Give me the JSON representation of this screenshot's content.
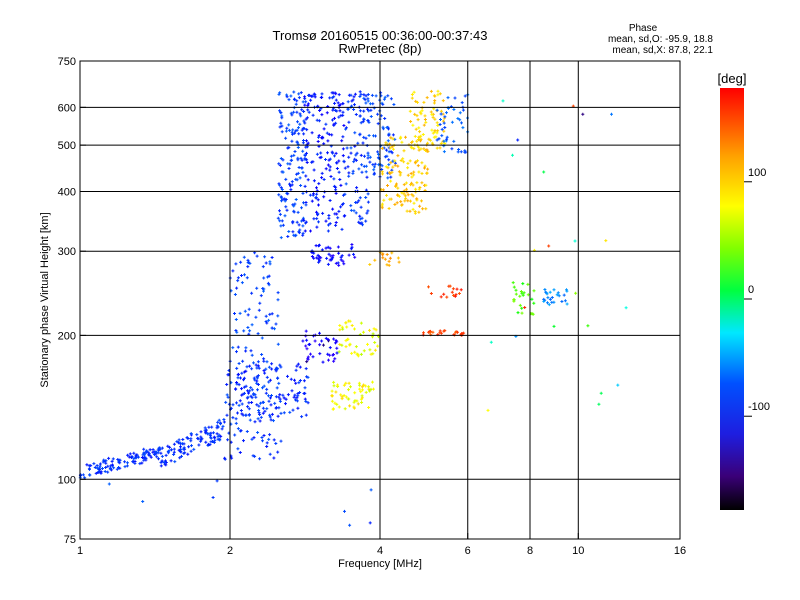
{
  "chart_data": {
    "type": "scatter",
    "title": "Tromsø 20160515 00:36:00-00:37:43",
    "subtitle": "RwPretec (8p)",
    "xlabel": "Frequency [MHz]",
    "ylabel": "Stationary phase Virtual Height [km]",
    "x_scale": "log",
    "y_scale": "log",
    "xlim": [
      1,
      16
    ],
    "ylim": [
      75,
      750
    ],
    "x_ticks": [
      "1",
      "2",
      "4",
      "6",
      "8",
      "10",
      "16"
    ],
    "x_tick_values": [
      1,
      2,
      4,
      6,
      8,
      10,
      16
    ],
    "y_ticks": [
      "75",
      "100",
      "200",
      "300",
      "400",
      "500",
      "600",
      "750"
    ],
    "y_tick_values": [
      75,
      100,
      200,
      300,
      400,
      500,
      600,
      750
    ],
    "grid": true,
    "stats": {
      "heading": "Phase",
      "line_o": "mean, sd,O: -95.9, 18.8",
      "line_x": "mean, sd,X:  87.8, 22.1"
    },
    "colorbar": {
      "unit": "[deg]",
      "range": [
        -180,
        180
      ],
      "tick_labels": [
        "100",
        "0",
        "-100"
      ],
      "tick_values": [
        100,
        0,
        -100
      ]
    },
    "clusters": [
      {
        "f": [
          1.0,
          1.45
        ],
        "h": [
          100,
          118
        ],
        "phase": -108,
        "n": 120,
        "shape": "low"
      },
      {
        "f": [
          1.45,
          1.95
        ],
        "h": [
          105,
          135
        ],
        "phase": -108,
        "n": 110,
        "shape": "low"
      },
      {
        "f": [
          1.95,
          2.55
        ],
        "h": [
          110,
          175
        ],
        "phase": -105,
        "n": 110
      },
      {
        "f": [
          2.05,
          2.9
        ],
        "h": [
          135,
          175
        ],
        "phase": -110,
        "n": 110
      },
      {
        "f": [
          2.0,
          2.5
        ],
        "h": [
          175,
          300
        ],
        "phase": -100,
        "n": 85
      },
      {
        "f": [
          2.5,
          2.85
        ],
        "h": [
          320,
          650
        ],
        "phase": -100,
        "n": 160
      },
      {
        "f": [
          2.8,
          3.4
        ],
        "h": [
          330,
          650
        ],
        "phase": -118,
        "n": 180
      },
      {
        "f": [
          3.4,
          3.8
        ],
        "h": [
          340,
          650
        ],
        "phase": -105,
        "n": 90
      },
      {
        "f": [
          3.7,
          4.3
        ],
        "h": [
          420,
          650
        ],
        "phase": -98,
        "n": 90
      },
      {
        "f": [
          2.9,
          3.6
        ],
        "h": [
          280,
          310
        ],
        "phase": -130,
        "n": 45
      },
      {
        "f": [
          2.8,
          3.3
        ],
        "h": [
          175,
          205
        ],
        "phase": -140,
        "n": 40
      },
      {
        "f": [
          4.0,
          5.0
        ],
        "h": [
          360,
          520
        ],
        "phase": 100,
        "n": 130
      },
      {
        "f": [
          4.6,
          5.4
        ],
        "h": [
          490,
          650
        ],
        "phase": 95,
        "n": 80
      },
      {
        "f": [
          5.2,
          6.0
        ],
        "h": [
          480,
          650
        ],
        "phase": -90,
        "n": 45
      },
      {
        "f": [
          3.2,
          3.9
        ],
        "h": [
          140,
          160
        ],
        "phase": 82,
        "n": 55
      },
      {
        "f": [
          3.3,
          4.0
        ],
        "h": [
          180,
          215
        ],
        "phase": 78,
        "n": 45
      },
      {
        "f": [
          3.8,
          4.4
        ],
        "h": [
          280,
          300
        ],
        "phase": 110,
        "n": 15
      },
      {
        "f": [
          4.8,
          5.9
        ],
        "h": [
          200,
          205
        ],
        "phase": 155,
        "n": 25
      },
      {
        "f": [
          5.0,
          5.9
        ],
        "h": [
          240,
          255
        ],
        "phase": 160,
        "n": 15
      },
      {
        "f": [
          7.4,
          8.2
        ],
        "h": [
          220,
          260
        ],
        "phase": 40,
        "n": 25
      },
      {
        "f": [
          8.5,
          9.5
        ],
        "h": [
          230,
          250
        ],
        "phase": -70,
        "n": 25
      },
      {
        "f": [
          6.5,
          13.5
        ],
        "h": [
          130,
          640
        ],
        "phase": 0,
        "n": 22,
        "mixed": true
      },
      {
        "f": [
          1.0,
          4.4
        ],
        "h": [
          80,
          100
        ],
        "phase": -100,
        "n": 8
      }
    ]
  }
}
